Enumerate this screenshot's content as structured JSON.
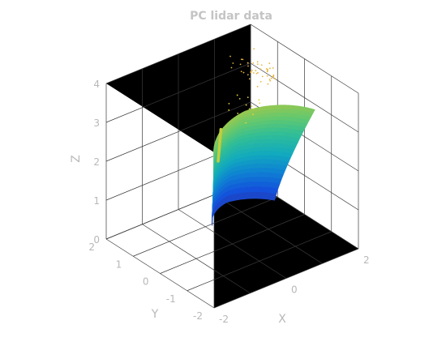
{
  "chart_data": {
    "type": "scatter3d",
    "title": "PC lidar data",
    "xlabel": "X",
    "ylabel": "Y",
    "zlabel": "Z",
    "xlim": [
      -2,
      2
    ],
    "ylim": [
      -2,
      2
    ],
    "zlim": [
      0,
      4
    ],
    "x_ticks": [
      "-2",
      "0",
      "2"
    ],
    "y_ticks": [
      "-2",
      "-1",
      "0",
      "1",
      "2"
    ],
    "z_ticks": [
      "0",
      "1",
      "2",
      "3",
      "4"
    ],
    "grid": true,
    "background": "#000000",
    "colormap": "parula",
    "colors": {
      "low": "#3a2ce0",
      "mid": "#1aa6c8",
      "high": "#4fd07a",
      "top": "#e8d23a"
    },
    "point_cloud": {
      "surface": {
        "azimuth_range": [
          -1.0,
          1.0
        ],
        "elevation_range": [
          0.0,
          0.55
        ],
        "z_range": [
          0.2,
          3.1
        ]
      },
      "sparse_points_z_range": [
        2.6,
        3.0
      ]
    }
  }
}
